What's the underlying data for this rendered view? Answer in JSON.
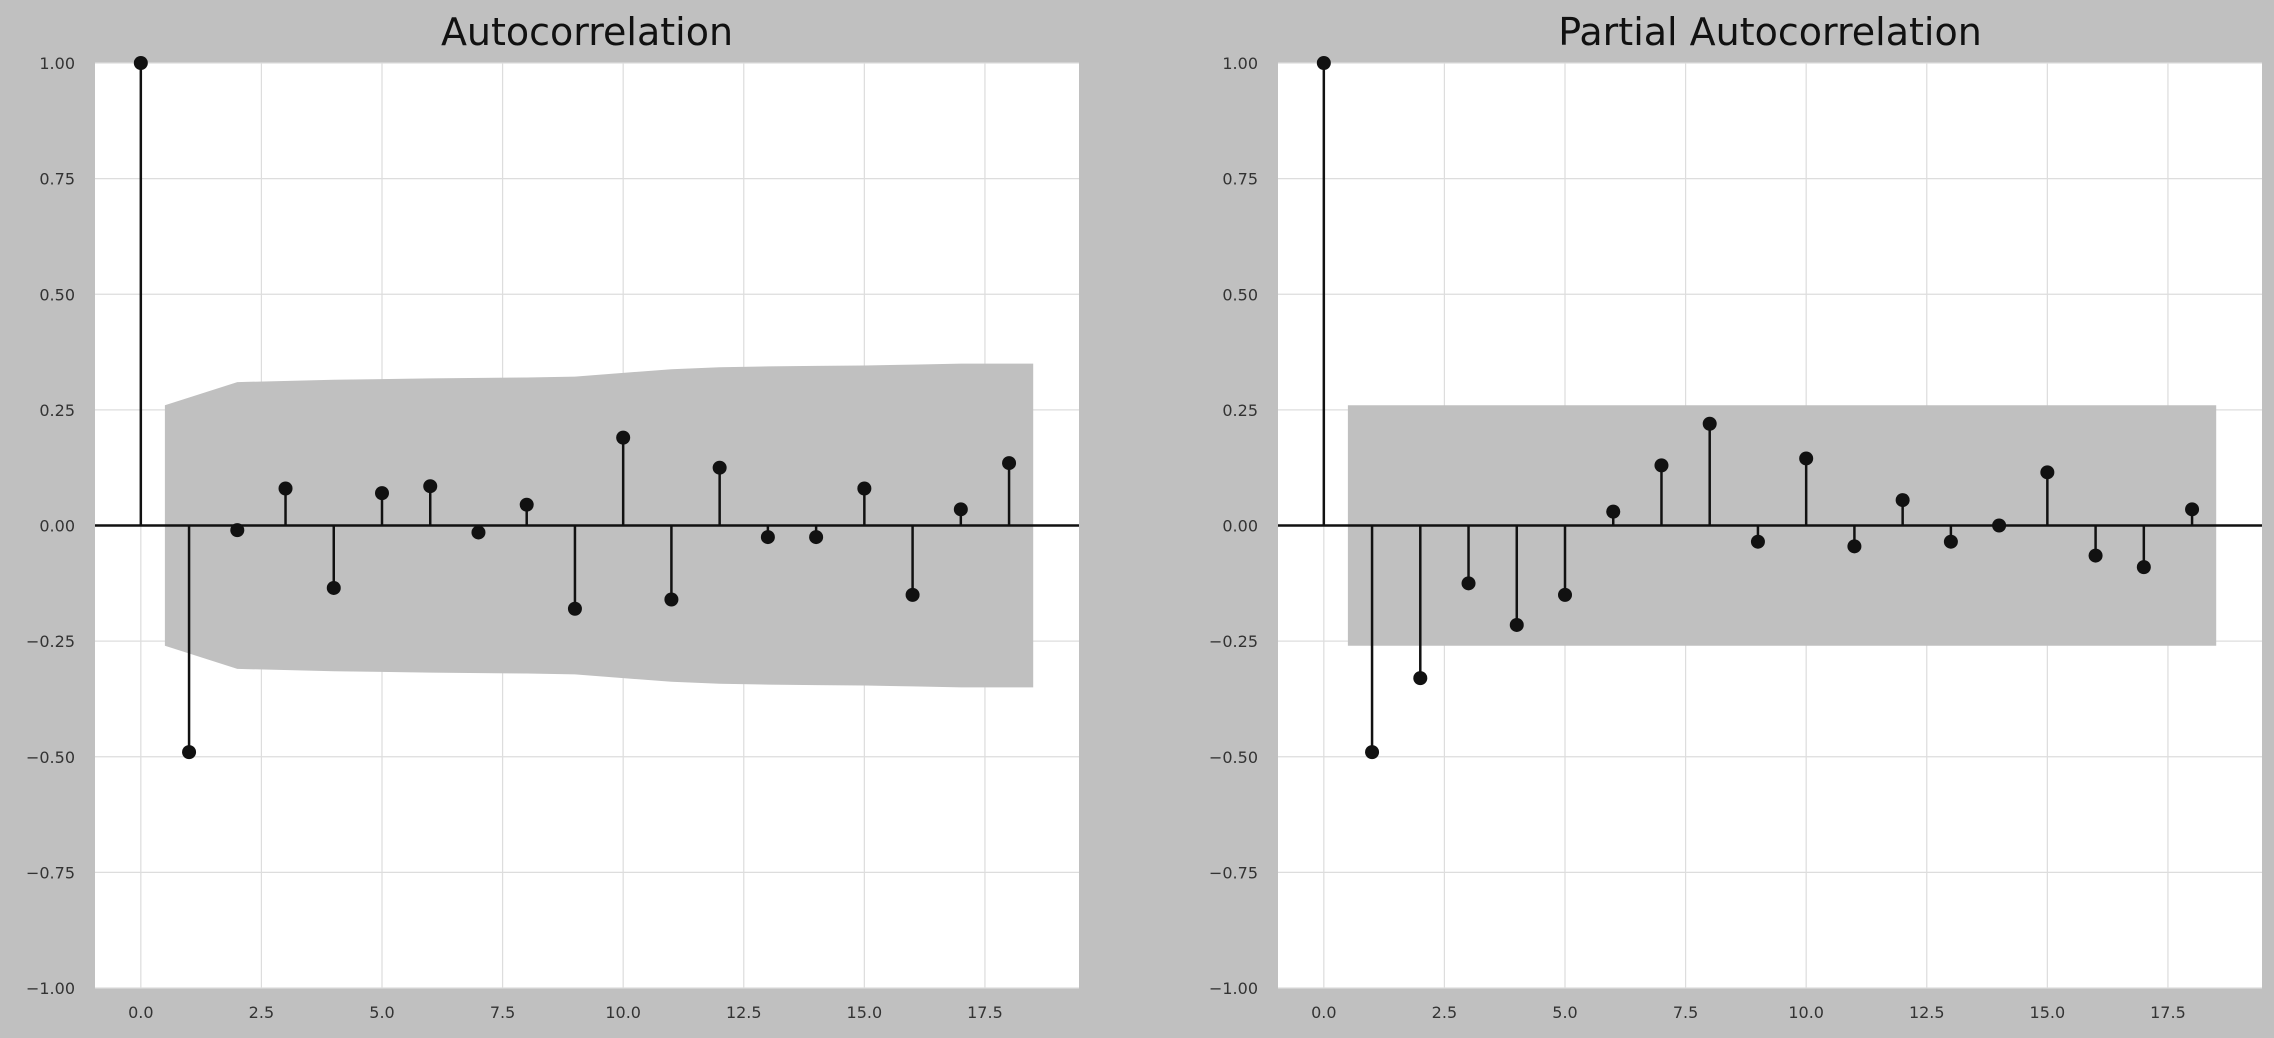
{
  "colors": {
    "figure_bg": "#c0c0c0",
    "axes_bg": "#ffffff",
    "grid": "#dddddd",
    "stem": "#111111",
    "marker": "#111111",
    "confidence_band": "#c0c0c0",
    "zero_line": "#111111"
  },
  "chart_data": [
    {
      "type": "stem",
      "title": "Autocorrelation",
      "xlabel": "",
      "ylabel": "",
      "xlim": [
        -0.95,
        19.45
      ],
      "ylim": [
        -1.0,
        1.0
      ],
      "grid": true,
      "xticks": [
        0,
        2.5,
        5,
        7.5,
        10,
        12.5,
        15,
        17.5
      ],
      "xtick_labels": [
        "0.0",
        "2.5",
        "5.0",
        "7.5",
        "10.0",
        "12.5",
        "15.0",
        "17.5"
      ],
      "yticks": [
        1,
        0.75,
        0.5,
        0.25,
        0,
        -0.25,
        -0.5,
        -0.75,
        -1
      ],
      "ytick_labels": [
        "1.00",
        "0.75",
        "0.50",
        "0.25",
        "0.00",
        "−0.25",
        "−0.50",
        "−0.75",
        "−1.00"
      ],
      "lags": [
        0,
        1,
        2,
        3,
        4,
        5,
        6,
        7,
        8,
        9,
        10,
        11,
        12,
        13,
        14,
        15,
        16,
        17,
        18
      ],
      "values": [
        1.0,
        -0.49,
        -0.01,
        0.08,
        -0.135,
        0.07,
        0.085,
        -0.015,
        0.045,
        -0.18,
        0.19,
        -0.16,
        0.125,
        -0.025,
        -0.025,
        0.08,
        -0.15,
        0.035,
        0.135
      ],
      "confidence_band": {
        "lags": [
          0.5,
          2,
          4,
          6,
          8,
          9,
          10,
          11,
          12,
          13,
          14,
          15,
          16,
          17,
          18.5
        ],
        "upper": [
          0.26,
          0.31,
          0.315,
          0.318,
          0.32,
          0.322,
          0.33,
          0.338,
          0.342,
          0.344,
          0.345,
          0.346,
          0.348,
          0.35,
          0.35
        ],
        "lower": [
          -0.26,
          -0.31,
          -0.315,
          -0.318,
          -0.32,
          -0.322,
          -0.33,
          -0.338,
          -0.342,
          -0.344,
          -0.345,
          -0.346,
          -0.348,
          -0.35,
          -0.35
        ]
      }
    },
    {
      "type": "stem",
      "title": "Partial Autocorrelation",
      "xlabel": "",
      "ylabel": "",
      "xlim": [
        -0.95,
        19.45
      ],
      "ylim": [
        -1.0,
        1.0
      ],
      "grid": true,
      "xticks": [
        0,
        2.5,
        5,
        7.5,
        10,
        12.5,
        15,
        17.5
      ],
      "xtick_labels": [
        "0.0",
        "2.5",
        "5.0",
        "7.5",
        "10.0",
        "12.5",
        "15.0",
        "17.5"
      ],
      "yticks": [
        1,
        0.75,
        0.5,
        0.25,
        0,
        -0.25,
        -0.5,
        -0.75,
        -1
      ],
      "ytick_labels": [
        "1.00",
        "0.75",
        "0.50",
        "0.25",
        "0.00",
        "−0.25",
        "−0.50",
        "−0.75",
        "−1.00"
      ],
      "lags": [
        0,
        1,
        2,
        3,
        4,
        5,
        6,
        7,
        8,
        9,
        10,
        11,
        12,
        13,
        14,
        15,
        16,
        17,
        18
      ],
      "values": [
        1.0,
        -0.49,
        -0.33,
        -0.125,
        -0.215,
        -0.15,
        0.03,
        0.13,
        0.22,
        -0.035,
        0.145,
        -0.045,
        0.055,
        -0.035,
        0.0,
        0.115,
        -0.065,
        -0.09,
        0.035
      ],
      "confidence_band": {
        "lags": [
          0.5,
          18.5
        ],
        "upper": [
          0.26,
          0.26
        ],
        "lower": [
          -0.26,
          -0.26
        ]
      }
    }
  ]
}
